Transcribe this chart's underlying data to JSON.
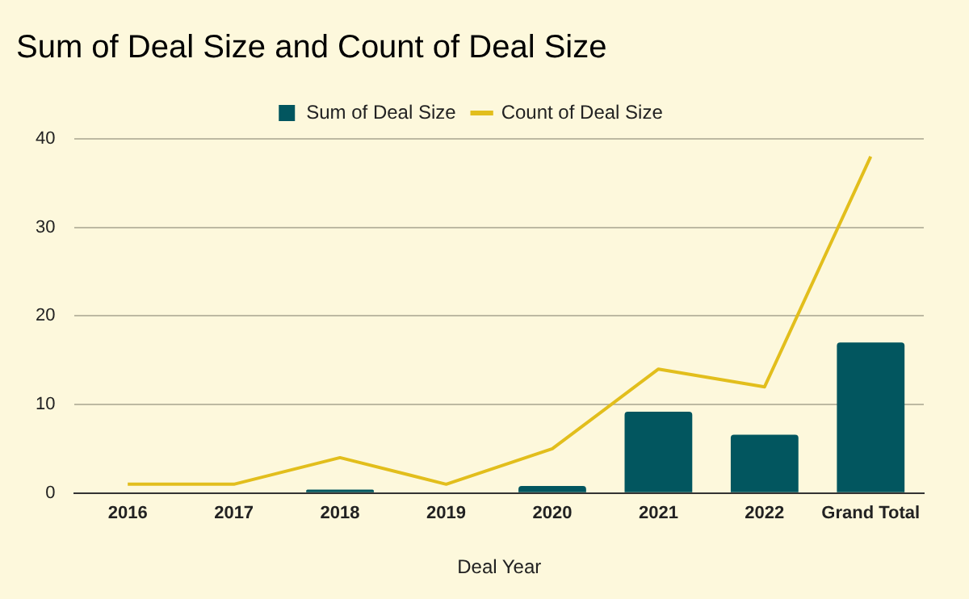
{
  "chart_data": {
    "type": "bar",
    "title": "Sum of Deal Size and Count of Deal Size",
    "xlabel": "Deal Year",
    "categories": [
      "2016",
      "2017",
      "2018",
      "2019",
      "2020",
      "2021",
      "2022",
      "Grand Total"
    ],
    "series": [
      {
        "name": "Sum of Deal Size",
        "color": "#02565f",
        "values": [
          0,
          0,
          0.4,
          0,
          0.8,
          9.2,
          6.6,
          17.0
        ]
      },
      {
        "name": "Count of Deal Size",
        "type": "line",
        "color": "#e2be1c",
        "values": [
          1,
          1,
          4,
          1,
          5,
          14,
          12,
          38
        ]
      }
    ],
    "ylim": [
      0,
      40
    ],
    "yticks": [
      0,
      10,
      20,
      30,
      40
    ],
    "grid": "y",
    "legend": "top",
    "marker": "none"
  }
}
